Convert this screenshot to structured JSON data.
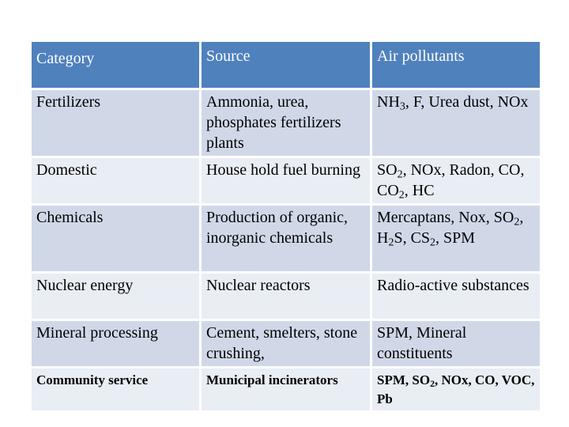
{
  "table": {
    "headers": [
      "Category",
      "Source",
      "Air pollutants"
    ],
    "rows": [
      {
        "category": "Fertilizers",
        "source": "Ammonia, urea, phosphates fertilizers plants",
        "pollutants": [
          "NH",
          {
            "sub": "3"
          },
          ", F, Urea dust, NOx"
        ]
      },
      {
        "category": "Domestic",
        "source": "House hold fuel burning",
        "pollutants": [
          "SO",
          {
            "sub": "2"
          },
          ", NOx, Radon, CO, CO",
          {
            "sub": "2"
          },
          ", HC"
        ]
      },
      {
        "category": "Chemicals",
        "source": "Production of organic, inorganic chemicals",
        "pollutants": [
          "Mercaptans, Nox, SO",
          {
            "sub": "2"
          },
          ", H",
          {
            "sub": "2"
          },
          "S, CS",
          {
            "sub": "2"
          },
          ", SPM"
        ]
      },
      {
        "category": "Nuclear energy",
        "source": "Nuclear reactors",
        "pollutants": [
          "Radio-active substances"
        ]
      },
      {
        "category": "Mineral processing",
        "source": "Cement, smelters, stone crushing,",
        "pollutants": [
          "SPM, Mineral constituents"
        ]
      },
      {
        "category": "Community service",
        "source": "Municipal incinerators",
        "pollutants": [
          "SPM, SO",
          {
            "sub": "2"
          },
          ", NOx, CO, VOC, Pb"
        ]
      }
    ]
  },
  "colors": {
    "header_bg": "#4f81bd",
    "row_odd_bg": "#d0d8e8",
    "row_even_bg": "#e9edf4"
  }
}
